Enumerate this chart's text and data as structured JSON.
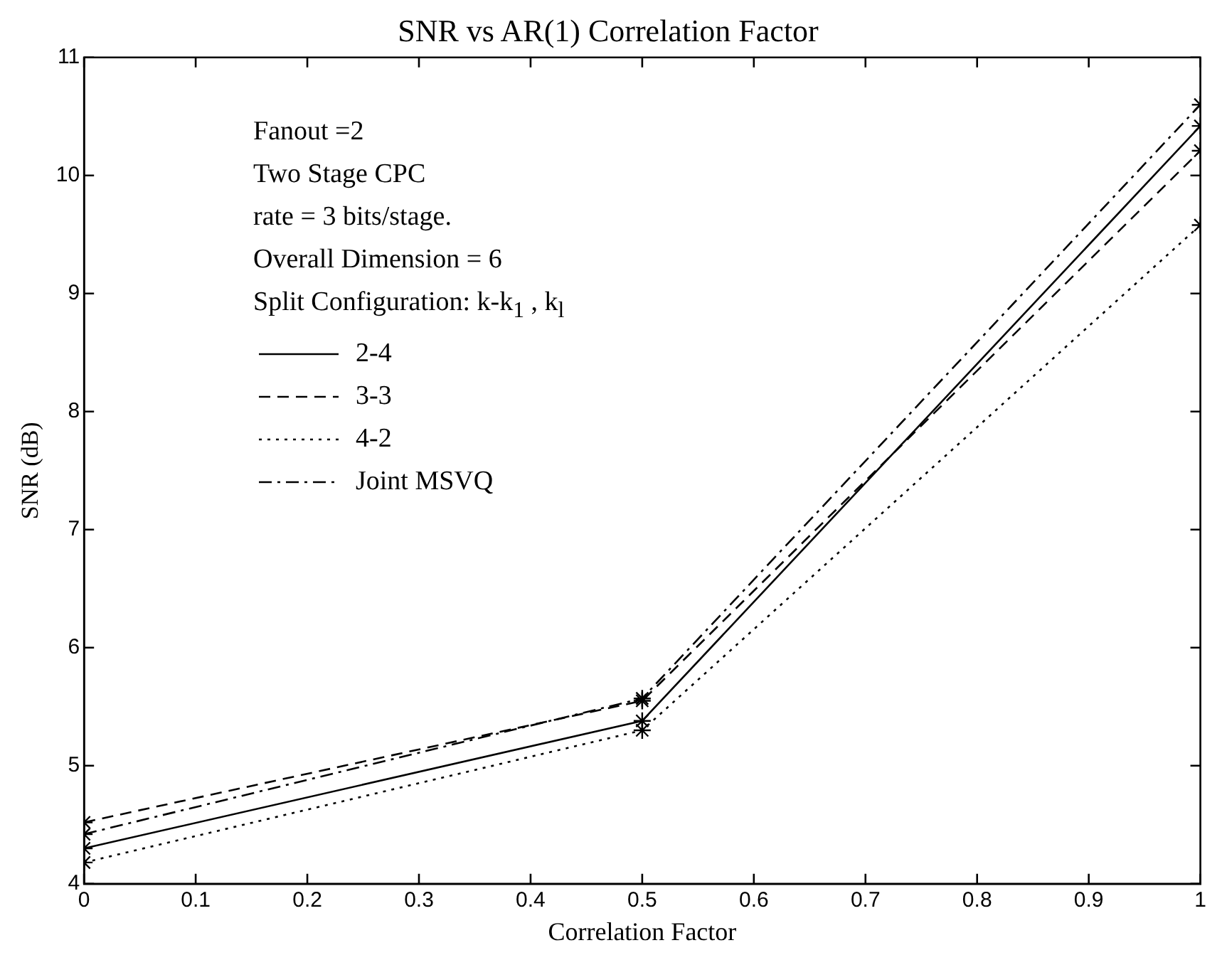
{
  "chart_data": {
    "type": "line",
    "title": "SNR vs AR(1) Correlation Factor",
    "xlabel": "Correlation Factor",
    "ylabel": "SNR (dB)",
    "x": [
      0,
      0.5,
      1
    ],
    "series": [
      {
        "name": "2-4",
        "color": "#000000",
        "values": [
          4.3,
          5.38,
          10.42
        ],
        "line_style": "solid"
      },
      {
        "name": "3-3",
        "color": "#000000",
        "values": [
          4.52,
          5.55,
          10.21
        ],
        "line_style": "dashed"
      },
      {
        "name": "4-2",
        "color": "#000000",
        "values": [
          4.18,
          5.3,
          9.58
        ],
        "line_style": "dotted"
      },
      {
        "name": "Joint MSVQ",
        "color": "#000000",
        "values": [
          4.42,
          5.57,
          10.6
        ],
        "line_style": "dashdot"
      }
    ],
    "xlim": [
      0,
      1
    ],
    "xticks": [
      0,
      0.1,
      0.2,
      0.3,
      0.4,
      0.5,
      0.6,
      0.7,
      0.8,
      0.9,
      1
    ],
    "ylim": [
      4,
      11
    ],
    "yticks": [
      4,
      5,
      6,
      7,
      8,
      9,
      10,
      11
    ],
    "marker": "cross",
    "grid": false,
    "legend": "top left",
    "annotations": [
      "Fanout =2",
      "Two Stage  CPC",
      "rate = 3 bits/stage.",
      "Overall Dimension = 6",
      "Split Configuration: k-k$_{1}$ , k$_{l}$"
    ]
  }
}
